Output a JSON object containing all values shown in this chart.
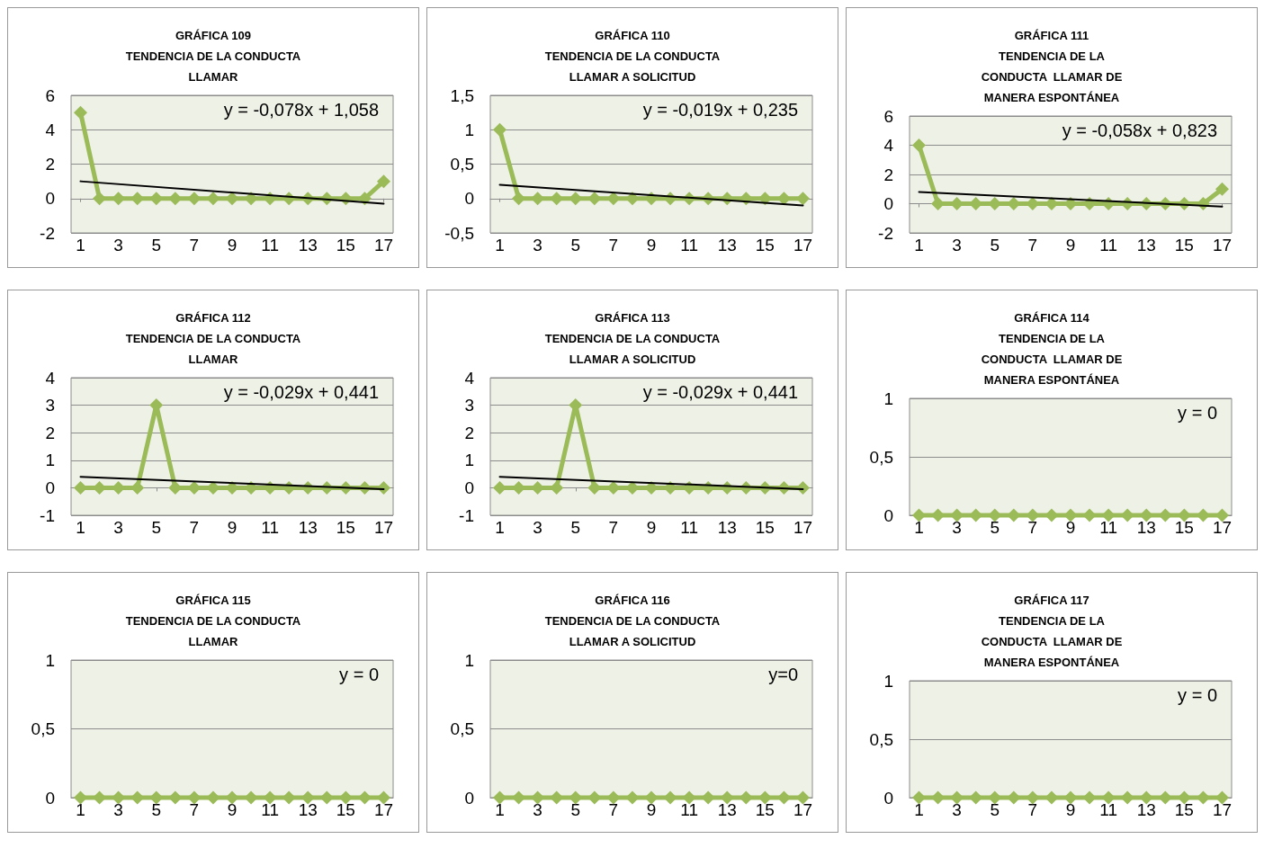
{
  "chart_data": [
    {
      "type": "line",
      "title": "GRÁFICA 109\nTENDENCIA DE LA CONDUCTA\nLLAMAR",
      "x": [
        1,
        2,
        3,
        4,
        5,
        6,
        7,
        8,
        9,
        10,
        11,
        12,
        13,
        14,
        15,
        16,
        17
      ],
      "marker": "diamond",
      "grid": "y",
      "xlim": [
        0.5,
        17.5
      ],
      "xticks": [
        1,
        3,
        5,
        7,
        9,
        11,
        13,
        15,
        17
      ],
      "ylim": [
        -2,
        6
      ],
      "yticks": [
        -2,
        0,
        2,
        4,
        6
      ],
      "annotations": [
        "y = -0,078x + 1,058"
      ],
      "series": [
        {
          "color": "#9bbb59",
          "values": [
            5,
            0,
            0,
            0,
            0,
            0,
            0,
            0,
            0,
            0,
            0,
            0,
            0,
            0,
            0,
            0,
            1
          ]
        },
        {
          "type": "line",
          "marker": "none",
          "color": "#000000",
          "values": [
            1,
            null,
            null,
            null,
            null,
            null,
            null,
            null,
            null,
            null,
            null,
            null,
            null,
            null,
            null,
            null,
            -0.3
          ]
        }
      ]
    },
    {
      "type": "line",
      "title": "GRÁFICA 110\nTENDENCIA DE LA CONDUCTA\nLLAMAR A SOLICITUD",
      "x": [
        1,
        2,
        3,
        4,
        5,
        6,
        7,
        8,
        9,
        10,
        11,
        12,
        13,
        14,
        15,
        16,
        17
      ],
      "marker": "diamond",
      "grid": "y",
      "xlim": [
        0.5,
        17.5
      ],
      "xticks": [
        1,
        3,
        5,
        7,
        9,
        11,
        13,
        15,
        17
      ],
      "ylim": [
        -0.5,
        1.5
      ],
      "yticks": [
        {
          "value": -0.5,
          "label": "-0,5"
        },
        0,
        {
          "value": 0.5,
          "label": "0,5"
        },
        1,
        {
          "value": 1.5,
          "label": "1,5"
        }
      ],
      "annotations": [
        "y = -0,019x + 0,235"
      ],
      "series": [
        {
          "color": "#9bbb59",
          "values": [
            1,
            0,
            0,
            0,
            0,
            0,
            0,
            0,
            0,
            0,
            0,
            0,
            0,
            0,
            0,
            0,
            0
          ]
        },
        {
          "type": "line",
          "marker": "none",
          "color": "#000000",
          "values": [
            0.2,
            null,
            null,
            null,
            null,
            null,
            null,
            null,
            null,
            null,
            null,
            null,
            null,
            null,
            null,
            null,
            -0.1
          ]
        }
      ]
    },
    {
      "type": "line",
      "title": "GRÁFICA 111\nTENDENCIA DE LA\nCONDUCTA  LLAMAR DE\nMANERA ESPONTÁNEA",
      "x": [
        1,
        2,
        3,
        4,
        5,
        6,
        7,
        8,
        9,
        10,
        11,
        12,
        13,
        14,
        15,
        16,
        17
      ],
      "marker": "diamond",
      "grid": "y",
      "xlim": [
        0.5,
        17.5
      ],
      "xticks": [
        1,
        3,
        5,
        7,
        9,
        11,
        13,
        15,
        17
      ],
      "ylim": [
        -2,
        6
      ],
      "yticks": [
        -2,
        0,
        2,
        4,
        6
      ],
      "annotations": [
        "y = -0,058x + 0,823"
      ],
      "series": [
        {
          "color": "#9bbb59",
          "values": [
            4,
            0,
            0,
            0,
            0,
            0,
            0,
            0,
            0,
            0,
            0,
            0,
            0,
            0,
            0,
            0,
            1
          ]
        },
        {
          "type": "line",
          "marker": "none",
          "color": "#000000",
          "values": [
            0.8,
            null,
            null,
            null,
            null,
            null,
            null,
            null,
            null,
            null,
            null,
            null,
            null,
            null,
            null,
            null,
            -0.2
          ]
        }
      ]
    },
    {
      "type": "line",
      "title": "GRÁFICA 112\nTENDENCIA DE LA CONDUCTA\nLLAMAR",
      "x": [
        1,
        2,
        3,
        4,
        5,
        6,
        7,
        8,
        9,
        10,
        11,
        12,
        13,
        14,
        15,
        16,
        17
      ],
      "marker": "diamond",
      "grid": "y",
      "xlim": [
        0.5,
        17.5
      ],
      "xticks": [
        1,
        3,
        5,
        7,
        9,
        11,
        13,
        15,
        17
      ],
      "ylim": [
        -1,
        4
      ],
      "yticks": [
        -1,
        0,
        1,
        2,
        3,
        4
      ],
      "annotations": [
        "y = -0,029x + 0,441"
      ],
      "series": [
        {
          "color": "#9bbb59",
          "values": [
            0,
            0,
            0,
            0,
            3,
            0,
            0,
            0,
            0,
            0,
            0,
            0,
            0,
            0,
            0,
            0,
            0
          ]
        },
        {
          "type": "line",
          "marker": "none",
          "color": "#000000",
          "values": [
            0.4,
            null,
            null,
            null,
            null,
            null,
            null,
            null,
            null,
            null,
            null,
            null,
            null,
            null,
            null,
            null,
            -0.05
          ]
        }
      ]
    },
    {
      "type": "line",
      "title": "GRÁFICA 113\nTENDENCIA DE LA CONDUCTA\nLLAMAR A SOLICITUD",
      "x": [
        1,
        2,
        3,
        4,
        5,
        6,
        7,
        8,
        9,
        10,
        11,
        12,
        13,
        14,
        15,
        16,
        17
      ],
      "marker": "diamond",
      "grid": "y",
      "xlim": [
        0.5,
        17.5
      ],
      "xticks": [
        1,
        3,
        5,
        7,
        9,
        11,
        13,
        15,
        17
      ],
      "ylim": [
        -1,
        4
      ],
      "yticks": [
        -1,
        0,
        1,
        2,
        3,
        4
      ],
      "annotations": [
        "y = -0,029x + 0,441"
      ],
      "series": [
        {
          "color": "#9bbb59",
          "values": [
            0,
            0,
            0,
            0,
            3,
            0,
            0,
            0,
            0,
            0,
            0,
            0,
            0,
            0,
            0,
            0,
            0
          ]
        },
        {
          "type": "line",
          "marker": "none",
          "color": "#000000",
          "values": [
            0.4,
            null,
            null,
            null,
            null,
            null,
            null,
            null,
            null,
            null,
            null,
            null,
            null,
            null,
            null,
            null,
            -0.05
          ]
        }
      ]
    },
    {
      "type": "line",
      "title": "GRÁFICA 114\nTENDENCIA DE LA\nCONDUCTA  LLAMAR DE\nMANERA ESPONTÁNEA",
      "x": [
        1,
        2,
        3,
        4,
        5,
        6,
        7,
        8,
        9,
        10,
        11,
        12,
        13,
        14,
        15,
        16,
        17
      ],
      "marker": "diamond",
      "grid": "y",
      "xlim": [
        0.5,
        17.5
      ],
      "xticks": [
        1,
        3,
        5,
        7,
        9,
        11,
        13,
        15,
        17
      ],
      "ylim": [
        0,
        1
      ],
      "yticks": [
        0,
        {
          "value": 0.5,
          "label": "0,5"
        },
        1
      ],
      "annotations": [
        "y = 0"
      ],
      "series": [
        {
          "color": "#9bbb59",
          "values": [
            0,
            0,
            0,
            0,
            0,
            0,
            0,
            0,
            0,
            0,
            0,
            0,
            0,
            0,
            0,
            0,
            0
          ]
        }
      ]
    },
    {
      "type": "line",
      "title": "GRÁFICA 115\nTENDENCIA DE LA CONDUCTA\nLLAMAR",
      "x": [
        1,
        2,
        3,
        4,
        5,
        6,
        7,
        8,
        9,
        10,
        11,
        12,
        13,
        14,
        15,
        16,
        17
      ],
      "marker": "diamond",
      "grid": "y",
      "xlim": [
        0.5,
        17.5
      ],
      "xticks": [
        1,
        3,
        5,
        7,
        9,
        11,
        13,
        15,
        17
      ],
      "ylim": [
        0,
        1
      ],
      "yticks": [
        0,
        {
          "value": 0.5,
          "label": "0,5"
        },
        1
      ],
      "annotations": [
        "y = 0"
      ],
      "series": [
        {
          "color": "#9bbb59",
          "values": [
            0,
            0,
            0,
            0,
            0,
            0,
            0,
            0,
            0,
            0,
            0,
            0,
            0,
            0,
            0,
            0,
            0
          ]
        }
      ]
    },
    {
      "type": "line",
      "title": "GRÁFICA 116\nTENDENCIA DE LA CONDUCTA\nLLAMAR A SOLICITUD",
      "x": [
        1,
        2,
        3,
        4,
        5,
        6,
        7,
        8,
        9,
        10,
        11,
        12,
        13,
        14,
        15,
        16,
        17
      ],
      "marker": "diamond",
      "grid": "y",
      "xlim": [
        0.5,
        17.5
      ],
      "xticks": [
        1,
        3,
        5,
        7,
        9,
        11,
        13,
        15,
        17
      ],
      "ylim": [
        0,
        1
      ],
      "yticks": [
        0,
        {
          "value": 0.5,
          "label": "0,5"
        },
        1
      ],
      "annotations": [
        "y=0"
      ],
      "series": [
        {
          "color": "#9bbb59",
          "values": [
            0,
            0,
            0,
            0,
            0,
            0,
            0,
            0,
            0,
            0,
            0,
            0,
            0,
            0,
            0,
            0,
            0
          ]
        }
      ]
    },
    {
      "type": "line",
      "title": "GRÁFICA 117\nTENDENCIA DE LA\nCONDUCTA  LLAMAR DE\nMANERA ESPONTÁNEA",
      "x": [
        1,
        2,
        3,
        4,
        5,
        6,
        7,
        8,
        9,
        10,
        11,
        12,
        13,
        14,
        15,
        16,
        17
      ],
      "marker": "diamond",
      "grid": "y",
      "xlim": [
        0.5,
        17.5
      ],
      "xticks": [
        1,
        3,
        5,
        7,
        9,
        11,
        13,
        15,
        17
      ],
      "ylim": [
        0,
        1
      ],
      "yticks": [
        0,
        {
          "value": 0.5,
          "label": "0,5"
        },
        1
      ],
      "annotations": [
        "y = 0"
      ],
      "series": [
        {
          "color": "#9bbb59",
          "values": [
            0,
            0,
            0,
            0,
            0,
            0,
            0,
            0,
            0,
            0,
            0,
            0,
            0,
            0,
            0,
            0,
            0
          ]
        }
      ]
    }
  ]
}
